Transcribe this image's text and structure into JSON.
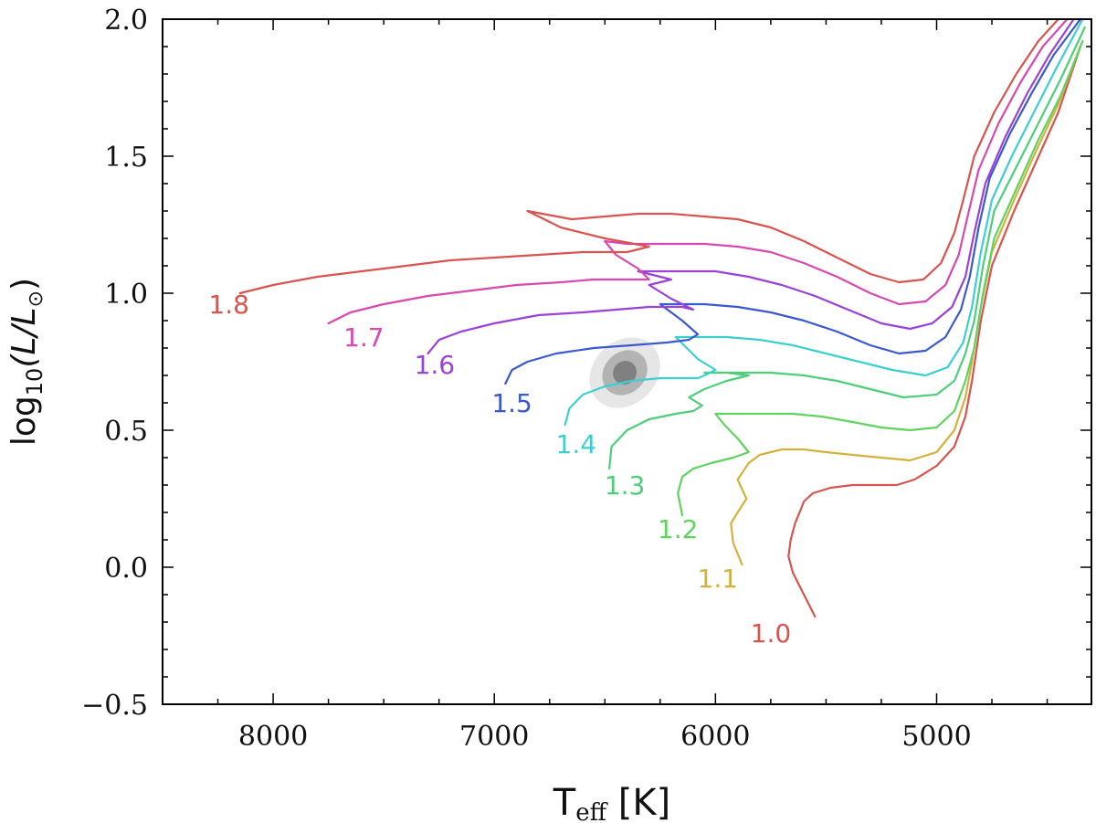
{
  "chart_data": {
    "type": "line",
    "title": "",
    "xlabel": {
      "main": "T",
      "sub": "eff",
      "unit": " [K]"
    },
    "ylabel": {
      "prefix": "log",
      "sub": "10",
      "body": "(L/L",
      "sun": "⊙",
      "close": ")"
    },
    "xlim": [
      8500,
      4300
    ],
    "ylim": [
      -0.5,
      2.0
    ],
    "xticks": [
      8000,
      7000,
      6000,
      5000
    ],
    "xtick_labels": [
      "8000",
      "7000",
      "6000",
      "5000"
    ],
    "yticks": [
      -0.5,
      0.0,
      0.5,
      1.0,
      1.5,
      2.0
    ],
    "ytick_labels": [
      "−0.5",
      "0.0",
      "0.5",
      "1.0",
      "1.5",
      "2.0"
    ],
    "grid": false,
    "confidence_region": {
      "center": [
        6410,
        0.71
      ],
      "levels": [
        {
          "semi_axes": [
            175,
            0.115
          ],
          "color": "#e6e6e6"
        },
        {
          "semi_axes": [
            110,
            0.075
          ],
          "color": "#b3b3b3"
        },
        {
          "semi_axes": [
            55,
            0.042
          ],
          "color": "#808080"
        }
      ],
      "angle_deg": -45
    },
    "series": [
      {
        "name": "1.0",
        "color": "#d9534f",
        "label_at": [
          5750,
          -0.24
        ],
        "x": [
          5550,
          5600,
          5650,
          5670,
          5660,
          5640,
          5620,
          5600,
          5560,
          5480,
          5380,
          5280,
          5180,
          5100,
          5000,
          4920,
          4870,
          4840,
          4800,
          4750,
          4650,
          4550,
          4450,
          4350
        ],
        "y": [
          -0.18,
          -0.1,
          -0.02,
          0.04,
          0.1,
          0.16,
          0.2,
          0.24,
          0.27,
          0.29,
          0.3,
          0.3,
          0.3,
          0.32,
          0.37,
          0.44,
          0.55,
          0.68,
          0.9,
          1.1,
          1.3,
          1.48,
          1.66,
          1.9
        ]
      },
      {
        "name": "1.1",
        "color": "#d4b13a",
        "label_at": [
          5990,
          -0.04
        ],
        "x": [
          5880,
          5920,
          5930,
          5900,
          5860,
          5900,
          5850,
          5800,
          5700,
          5600,
          5500,
          5380,
          5250,
          5120,
          5000,
          4920,
          4870,
          4840,
          4800,
          4750,
          4650,
          4550,
          4450,
          4350
        ],
        "y": [
          0.01,
          0.09,
          0.16,
          0.2,
          0.25,
          0.32,
          0.38,
          0.41,
          0.43,
          0.43,
          0.42,
          0.41,
          0.4,
          0.39,
          0.42,
          0.5,
          0.62,
          0.75,
          0.95,
          1.15,
          1.34,
          1.52,
          1.69,
          1.9
        ]
      },
      {
        "name": "1.2",
        "color": "#5fd35f",
        "label_at": [
          6170,
          0.14
        ],
        "x": [
          6150,
          6170,
          6150,
          6100,
          6020,
          5920,
          5850,
          5900,
          5960,
          6000,
          5900,
          5780,
          5650,
          5520,
          5380,
          5250,
          5120,
          5000,
          4920,
          4870,
          4830,
          4790,
          4740,
          4640,
          4540,
          4440,
          4340
        ],
        "y": [
          0.19,
          0.27,
          0.33,
          0.36,
          0.38,
          0.4,
          0.42,
          0.47,
          0.52,
          0.56,
          0.56,
          0.56,
          0.56,
          0.55,
          0.53,
          0.51,
          0.5,
          0.51,
          0.57,
          0.68,
          0.8,
          1.0,
          1.2,
          1.38,
          1.56,
          1.72,
          1.92
        ]
      },
      {
        "name": "1.3",
        "color": "#4ccf78",
        "label_at": [
          6410,
          0.3
        ],
        "x": [
          6480,
          6470,
          6400,
          6300,
          6180,
          6100,
          6060,
          6120,
          6050,
          5950,
          5850,
          5950,
          6050,
          5900,
          5750,
          5600,
          5450,
          5300,
          5150,
          5000,
          4920,
          4870,
          4830,
          4790,
          4740,
          4640,
          4540,
          4440,
          4330
        ],
        "y": [
          0.36,
          0.44,
          0.5,
          0.54,
          0.56,
          0.57,
          0.59,
          0.62,
          0.65,
          0.68,
          0.7,
          0.71,
          0.71,
          0.71,
          0.71,
          0.7,
          0.68,
          0.65,
          0.62,
          0.63,
          0.68,
          0.78,
          0.9,
          1.1,
          1.3,
          1.46,
          1.62,
          1.78,
          1.97
        ]
      },
      {
        "name": "1.4",
        "color": "#3ccfcf",
        "label_at": [
          6630,
          0.45
        ],
        "x": [
          6680,
          6660,
          6600,
          6500,
          6380,
          6250,
          6150,
          6080,
          6050,
          6000,
          6080,
          6180,
          6100,
          5950,
          5800,
          5650,
          5500,
          5350,
          5200,
          5050,
          4950,
          4880,
          4840,
          4800,
          4750,
          4660,
          4560,
          4460,
          4340
        ],
        "y": [
          0.52,
          0.58,
          0.63,
          0.66,
          0.68,
          0.69,
          0.69,
          0.69,
          0.7,
          0.72,
          0.76,
          0.84,
          0.84,
          0.84,
          0.83,
          0.81,
          0.78,
          0.75,
          0.72,
          0.7,
          0.73,
          0.82,
          0.95,
          1.15,
          1.34,
          1.5,
          1.66,
          1.82,
          2.0
        ]
      },
      {
        "name": "1.5",
        "color": "#3a59d0",
        "label_at": [
          6920,
          0.6
        ],
        "x": [
          6950,
          6920,
          6850,
          6720,
          6550,
          6380,
          6220,
          6120,
          6080,
          6150,
          6250,
          6180,
          6050,
          5900,
          5750,
          5600,
          5450,
          5300,
          5170,
          5050,
          4960,
          4890,
          4850,
          4810,
          4760,
          4670,
          4570,
          4470,
          4350
        ],
        "y": [
          0.67,
          0.72,
          0.75,
          0.78,
          0.8,
          0.81,
          0.82,
          0.83,
          0.85,
          0.9,
          0.96,
          0.96,
          0.96,
          0.95,
          0.93,
          0.9,
          0.86,
          0.81,
          0.78,
          0.79,
          0.84,
          0.94,
          1.06,
          1.24,
          1.42,
          1.58,
          1.73,
          1.87,
          2.0
        ]
      },
      {
        "name": "1.6",
        "color": "#9a42d8",
        "label_at": [
          7270,
          0.74
        ],
        "x": [
          7300,
          7250,
          7150,
          7000,
          6800,
          6600,
          6450,
          6300,
          6150,
          6100,
          6200,
          6300,
          6200,
          6350,
          6300,
          6150,
          6000,
          5850,
          5700,
          5550,
          5400,
          5250,
          5120,
          5020,
          4930,
          4870,
          4830,
          4780,
          4690,
          4590,
          4490,
          4380
        ],
        "y": [
          0.78,
          0.83,
          0.86,
          0.89,
          0.92,
          0.93,
          0.94,
          0.95,
          0.95,
          0.94,
          0.98,
          1.03,
          1.05,
          1.08,
          1.08,
          1.08,
          1.08,
          1.06,
          1.03,
          0.99,
          0.94,
          0.89,
          0.87,
          0.89,
          0.95,
          1.06,
          1.22,
          1.4,
          1.57,
          1.73,
          1.87,
          2.0
        ]
      },
      {
        "name": "1.7",
        "color": "#d848b0",
        "label_at": [
          7590,
          0.84
        ],
        "x": [
          7750,
          7650,
          7500,
          7300,
          7100,
          6900,
          6700,
          6550,
          6400,
          6300,
          6350,
          6450,
          6500,
          6400,
          6300,
          6200,
          6050,
          5900,
          5750,
          5600,
          5450,
          5300,
          5170,
          5050,
          4960,
          4900,
          4860,
          4810,
          4720,
          4620,
          4520,
          4410
        ],
        "y": [
          0.89,
          0.93,
          0.96,
          0.99,
          1.01,
          1.03,
          1.04,
          1.05,
          1.05,
          1.05,
          1.09,
          1.14,
          1.19,
          1.18,
          1.18,
          1.18,
          1.18,
          1.17,
          1.15,
          1.11,
          1.06,
          1.0,
          0.96,
          0.97,
          1.03,
          1.14,
          1.28,
          1.45,
          1.62,
          1.77,
          1.9,
          2.0
        ]
      },
      {
        "name": "1.8",
        "color": "#d9534f",
        "label_at": [
          8200,
          0.96
        ],
        "x": [
          8150,
          8000,
          7800,
          7600,
          7400,
          7200,
          7000,
          6800,
          6600,
          6400,
          6300,
          6500,
          6700,
          6850,
          6650,
          6500,
          6350,
          6200,
          6050,
          5900,
          5750,
          5600,
          5450,
          5300,
          5170,
          5060,
          4980,
          4920,
          4880,
          4830,
          4740,
          4640,
          4540,
          4450
        ],
        "y": [
          1.0,
          1.03,
          1.06,
          1.08,
          1.1,
          1.12,
          1.13,
          1.14,
          1.15,
          1.15,
          1.17,
          1.2,
          1.24,
          1.3,
          1.27,
          1.28,
          1.29,
          1.29,
          1.28,
          1.27,
          1.24,
          1.19,
          1.13,
          1.07,
          1.04,
          1.05,
          1.11,
          1.22,
          1.34,
          1.5,
          1.66,
          1.8,
          1.92,
          2.0
        ]
      }
    ]
  }
}
